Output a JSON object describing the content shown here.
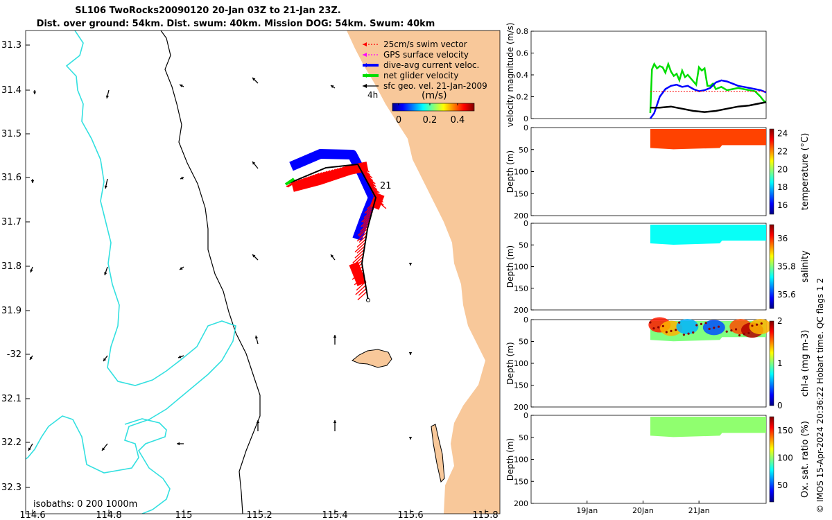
{
  "title": {
    "line1": "SL106 TwoRocks20090120 20-Jan 03Z to 21-Jan 23Z.",
    "line2": "Dist. over ground: 54km. Dist. swum: 40km. Mission DOG: 54km. Swum: 40km"
  },
  "stamp": "© IMOS 15-Apr-2024 20:36:22 Hobart time. QC flags 1  2",
  "colors": {
    "land": "#F8C89A",
    "coast200": "#000000",
    "isobath1000": "#33E0E0",
    "swim": "#FF0000",
    "gps": "#FF00FF",
    "diveavg": "#0000FF",
    "net": "#00DD00",
    "sfc": "#000000"
  },
  "map": {
    "lon_ticks": [
      "114.6",
      "114.8",
      "115",
      "115.2",
      "115.4",
      "115.6",
      "115.8"
    ],
    "lat_ticks": [
      "31.3",
      "31.4",
      "31.5",
      "31.6",
      "31.7",
      "31.8",
      "31.9",
      "-32",
      "32.1",
      "32.2",
      "32.3"
    ],
    "legend": [
      {
        "label": "25cm/s swim vector",
        "color": "#FF0000"
      },
      {
        "label": "GPS surface velocity",
        "color": "#FF00FF"
      },
      {
        "label": "dive-avg current veloc.",
        "color": "#0000FF"
      },
      {
        "label": "net glider velocity",
        "color": "#00DD00"
      },
      {
        "label": "sfc geo. vel. 21-Jan-2009",
        "color": "#000000"
      }
    ],
    "label_4h": "4h",
    "colorbar_title": "(m/s)",
    "colorbar_ticks": [
      "0",
      "0.2",
      "0.4"
    ],
    "day_label": "21",
    "isobaths_label": "isobaths: 0   200  1000m"
  },
  "chart_data": [
    {
      "type": "line",
      "name": "velocity",
      "ylabel": "velocity magnitude (m/s)",
      "ylim": [
        0,
        0.8
      ],
      "yticks": [
        "0",
        "0.2",
        "0.4",
        "0.6",
        "0.8"
      ],
      "x_units": "days since 18-Jan 00Z",
      "xlim": [
        0,
        4.2
      ],
      "series": [
        {
          "name": "net glider velocity",
          "color": "#00DD00",
          "x": [
            2.13,
            2.16,
            2.2,
            2.25,
            2.3,
            2.35,
            2.4,
            2.45,
            2.5,
            2.55,
            2.6,
            2.65,
            2.7,
            2.75,
            2.8,
            2.85,
            2.9,
            2.95,
            3.0,
            3.05,
            3.1,
            3.15,
            3.2,
            3.25,
            3.3,
            3.35,
            3.4,
            3.5,
            3.6,
            3.7,
            3.8,
            3.9,
            4.0,
            4.1,
            4.16,
            4.2
          ],
          "y": [
            0.05,
            0.45,
            0.5,
            0.46,
            0.48,
            0.47,
            0.42,
            0.5,
            0.43,
            0.39,
            0.41,
            0.35,
            0.44,
            0.38,
            0.4,
            0.37,
            0.34,
            0.31,
            0.47,
            0.44,
            0.46,
            0.3,
            0.3,
            0.32,
            0.27,
            0.28,
            0.29,
            0.26,
            0.27,
            0.28,
            0.27,
            0.26,
            0.25,
            0.2,
            0.16,
            0.15
          ]
        },
        {
          "name": "dive-avg current veloc.",
          "color": "#0000FF",
          "x": [
            2.13,
            2.2,
            2.3,
            2.4,
            2.5,
            2.6,
            2.7,
            2.8,
            2.9,
            3.0,
            3.1,
            3.2,
            3.3,
            3.4,
            3.5,
            3.6,
            3.7,
            3.8,
            3.9,
            4.0,
            4.1,
            4.2
          ],
          "y": [
            0.0,
            0.05,
            0.2,
            0.27,
            0.3,
            0.31,
            0.29,
            0.3,
            0.27,
            0.25,
            0.26,
            0.28,
            0.33,
            0.35,
            0.34,
            0.32,
            0.3,
            0.29,
            0.28,
            0.27,
            0.26,
            0.24
          ]
        },
        {
          "name": "sfc geo. vel.",
          "color": "#000000",
          "x": [
            2.13,
            2.3,
            2.5,
            2.7,
            2.9,
            3.1,
            3.3,
            3.5,
            3.7,
            3.9,
            4.1,
            4.2
          ],
          "y": [
            0.1,
            0.1,
            0.11,
            0.09,
            0.07,
            0.06,
            0.07,
            0.09,
            0.11,
            0.12,
            0.14,
            0.15
          ]
        },
        {
          "name": "swim speed",
          "color": "#FF0000",
          "dashed": true,
          "x": [
            2.13,
            4.2
          ],
          "y": [
            0.25,
            0.25
          ]
        }
      ]
    },
    {
      "type": "heatmap",
      "name": "temperature",
      "ylabel": "Depth (m)",
      "ylim": [
        200,
        0
      ],
      "yticks": [
        "0",
        "50",
        "100",
        "150",
        "200"
      ],
      "cbar_label": "temperature (°C)",
      "cbar_ticks": [
        "16",
        "18",
        "20",
        "22",
        "24"
      ],
      "cbar_range": [
        15,
        24.5
      ],
      "xlim": [
        0,
        4.2
      ],
      "data_x": [
        2.13,
        4.2
      ],
      "data_depth": [
        0,
        40
      ],
      "value": 22.7
    },
    {
      "type": "heatmap",
      "name": "salinity",
      "ylabel": "Depth (m)",
      "ylim": [
        200,
        0
      ],
      "yticks": [
        "0",
        "50",
        "100",
        "150",
        "200"
      ],
      "cbar_label": "salinity",
      "cbar_ticks": [
        "35.6",
        "35.8",
        "36"
      ],
      "cbar_range": [
        35.5,
        36.1
      ],
      "xlim": [
        0,
        4.2
      ],
      "data_x": [
        2.13,
        4.2
      ],
      "data_depth": [
        0,
        40
      ],
      "value": 35.73
    },
    {
      "type": "heatmap",
      "name": "chl-a",
      "ylabel": "Depth (m)",
      "ylim": [
        200,
        0
      ],
      "yticks": [
        "0",
        "50",
        "100",
        "150",
        "200"
      ],
      "cbar_label": "chl-a (mg m-3)",
      "cbar_ticks": [
        "0",
        "1",
        "2"
      ],
      "cbar_range": [
        0,
        2
      ],
      "xlim": [
        0,
        4.2
      ],
      "data_x": [
        2.13,
        4.2
      ],
      "data_depth": [
        0,
        40
      ],
      "value": 1.0
    },
    {
      "type": "heatmap",
      "name": "oxygen",
      "ylabel": "Depth (m)",
      "ylim": [
        200,
        0
      ],
      "yticks": [
        "0",
        "50",
        "100",
        "150",
        "200"
      ],
      "cbar_label": "Ox. sat. ratio (%)",
      "cbar_ticks": [
        "50",
        "100",
        "150"
      ],
      "cbar_range": [
        20,
        175
      ],
      "xlim": [
        0,
        4.2
      ],
      "data_x": [
        2.13,
        4.2
      ],
      "data_depth": [
        0,
        40
      ],
      "value": 100,
      "xticks": [
        {
          "x": 1,
          "label": "19Jan"
        },
        {
          "x": 2,
          "label": "20Jan"
        },
        {
          "x": 3,
          "label": "21Jan"
        }
      ]
    }
  ]
}
